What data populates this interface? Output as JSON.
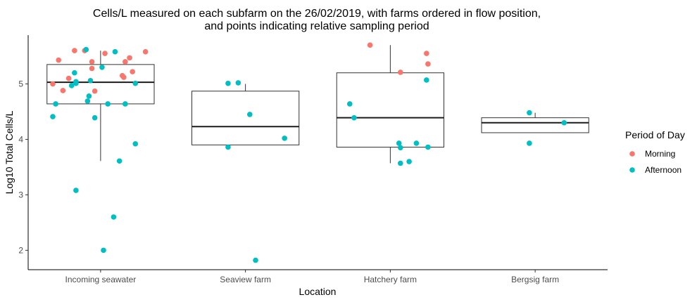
{
  "chart_data": {
    "type": "boxplot",
    "title_lines": [
      "Cells/L measured on each subfarm on the 26/02/2019, with farms ordered in flow position,",
      "and points indicating relative sampling period"
    ],
    "xlabel": "Location",
    "ylabel": "Log10 Total Cells/L",
    "categories": [
      "Incoming seawater",
      "Seaview farm",
      "Hatchery farm",
      "Bergsig farm"
    ],
    "ylim": [
      1.65,
      5.88
    ],
    "yticks": [
      2,
      3,
      4,
      5
    ],
    "grid": false,
    "legend": {
      "title": "Period of Day",
      "position": "right",
      "entries": [
        {
          "name": "Morning",
          "color": "#F8766D"
        },
        {
          "name": "Afternoon",
          "color": "#00BFC4"
        }
      ]
    },
    "boxes": [
      {
        "category": "Incoming seawater",
        "q1": 4.64,
        "median": 5.03,
        "q3": 5.35,
        "whisker_low": 3.61,
        "whisker_high": 5.6
      },
      {
        "category": "Seaview farm",
        "q1": 3.9,
        "median": 4.23,
        "q3": 4.87,
        "whisker_low": 3.9,
        "whisker_high": 5.0
      },
      {
        "category": "Hatchery farm",
        "q1": 3.86,
        "median": 4.39,
        "q3": 5.2,
        "whisker_low": 3.57,
        "whisker_high": 5.7
      },
      {
        "category": "Bergsig farm",
        "q1": 4.12,
        "median": 4.3,
        "q3": 4.39,
        "whisker_low": 4.12,
        "whisker_high": 4.48
      }
    ],
    "series": [
      {
        "name": "Morning",
        "points": [
          {
            "x": "Incoming seawater",
            "jitter": -0.33,
            "y": 5.0
          },
          {
            "x": "Incoming seawater",
            "jitter": -0.29,
            "y": 5.43
          },
          {
            "x": "Incoming seawater",
            "jitter": -0.26,
            "y": 4.88
          },
          {
            "x": "Incoming seawater",
            "jitter": -0.22,
            "y": 5.1
          },
          {
            "x": "Incoming seawater",
            "jitter": -0.18,
            "y": 5.6
          },
          {
            "x": "Incoming seawater",
            "jitter": -0.11,
            "y": 5.6
          },
          {
            "x": "Incoming seawater",
            "jitter": -0.06,
            "y": 5.28
          },
          {
            "x": "Incoming seawater",
            "jitter": -0.06,
            "y": 5.4
          },
          {
            "x": "Incoming seawater",
            "jitter": -0.04,
            "y": 4.87
          },
          {
            "x": "Incoming seawater",
            "jitter": 0.03,
            "y": 5.55
          },
          {
            "x": "Incoming seawater",
            "jitter": 0.15,
            "y": 5.15
          },
          {
            "x": "Incoming seawater",
            "jitter": 0.16,
            "y": 5.12
          },
          {
            "x": "Incoming seawater",
            "jitter": 0.17,
            "y": 5.4
          },
          {
            "x": "Incoming seawater",
            "jitter": 0.2,
            "y": 5.47
          },
          {
            "x": "Incoming seawater",
            "jitter": 0.22,
            "y": 5.22
          },
          {
            "x": "Incoming seawater",
            "jitter": 0.31,
            "y": 5.58
          },
          {
            "x": "Hatchery farm",
            "jitter": -0.14,
            "y": 5.7
          },
          {
            "x": "Hatchery farm",
            "jitter": 0.07,
            "y": 5.21
          },
          {
            "x": "Hatchery farm",
            "jitter": 0.25,
            "y": 5.55
          },
          {
            "x": "Hatchery farm",
            "jitter": 0.26,
            "y": 5.36
          }
        ]
      },
      {
        "name": "Afternoon",
        "points": [
          {
            "x": "Incoming seawater",
            "jitter": -0.33,
            "y": 4.41
          },
          {
            "x": "Incoming seawater",
            "jitter": -0.31,
            "y": 4.64
          },
          {
            "x": "Incoming seawater",
            "jitter": -0.2,
            "y": 4.97
          },
          {
            "x": "Incoming seawater",
            "jitter": -0.18,
            "y": 5.2
          },
          {
            "x": "Incoming seawater",
            "jitter": -0.17,
            "y": 3.08
          },
          {
            "x": "Incoming seawater",
            "jitter": -0.17,
            "y": 5.01
          },
          {
            "x": "Incoming seawater",
            "jitter": -0.17,
            "y": 5.04
          },
          {
            "x": "Incoming seawater",
            "jitter": -0.1,
            "y": 5.62
          },
          {
            "x": "Incoming seawater",
            "jitter": -0.09,
            "y": 4.69
          },
          {
            "x": "Incoming seawater",
            "jitter": -0.08,
            "y": 4.78
          },
          {
            "x": "Incoming seawater",
            "jitter": -0.07,
            "y": 5.06
          },
          {
            "x": "Incoming seawater",
            "jitter": -0.04,
            "y": 4.39
          },
          {
            "x": "Incoming seawater",
            "jitter": 0.01,
            "y": 5.3
          },
          {
            "x": "Incoming seawater",
            "jitter": 0.02,
            "y": 2.0
          },
          {
            "x": "Incoming seawater",
            "jitter": 0.05,
            "y": 4.64
          },
          {
            "x": "Incoming seawater",
            "jitter": 0.09,
            "y": 2.6
          },
          {
            "x": "Incoming seawater",
            "jitter": 0.1,
            "y": 5.58
          },
          {
            "x": "Incoming seawater",
            "jitter": 0.13,
            "y": 3.61
          },
          {
            "x": "Incoming seawater",
            "jitter": 0.17,
            "y": 4.64
          },
          {
            "x": "Incoming seawater",
            "jitter": 0.24,
            "y": 5.01
          },
          {
            "x": "Incoming seawater",
            "jitter": 0.24,
            "y": 3.92
          },
          {
            "x": "Seaview farm",
            "jitter": -0.12,
            "y": 5.01
          },
          {
            "x": "Seaview farm",
            "jitter": -0.12,
            "y": 3.86
          },
          {
            "x": "Seaview farm",
            "jitter": -0.05,
            "y": 5.02
          },
          {
            "x": "Seaview farm",
            "jitter": 0.03,
            "y": 4.45
          },
          {
            "x": "Seaview farm",
            "jitter": 0.07,
            "y": 1.82
          },
          {
            "x": "Seaview farm",
            "jitter": 0.27,
            "y": 4.02
          },
          {
            "x": "Hatchery farm",
            "jitter": -0.28,
            "y": 4.64
          },
          {
            "x": "Hatchery farm",
            "jitter": -0.25,
            "y": 4.39
          },
          {
            "x": "Hatchery farm",
            "jitter": 0.06,
            "y": 3.93
          },
          {
            "x": "Hatchery farm",
            "jitter": 0.07,
            "y": 3.85
          },
          {
            "x": "Hatchery farm",
            "jitter": 0.07,
            "y": 3.57
          },
          {
            "x": "Hatchery farm",
            "jitter": 0.13,
            "y": 3.6
          },
          {
            "x": "Hatchery farm",
            "jitter": 0.18,
            "y": 3.93
          },
          {
            "x": "Hatchery farm",
            "jitter": 0.25,
            "y": 5.07
          },
          {
            "x": "Hatchery farm",
            "jitter": 0.26,
            "y": 3.86
          },
          {
            "x": "Bergsig farm",
            "jitter": -0.04,
            "y": 4.48
          },
          {
            "x": "Bergsig farm",
            "jitter": -0.04,
            "y": 3.93
          },
          {
            "x": "Bergsig farm",
            "jitter": 0.2,
            "y": 4.3
          }
        ]
      }
    ]
  }
}
